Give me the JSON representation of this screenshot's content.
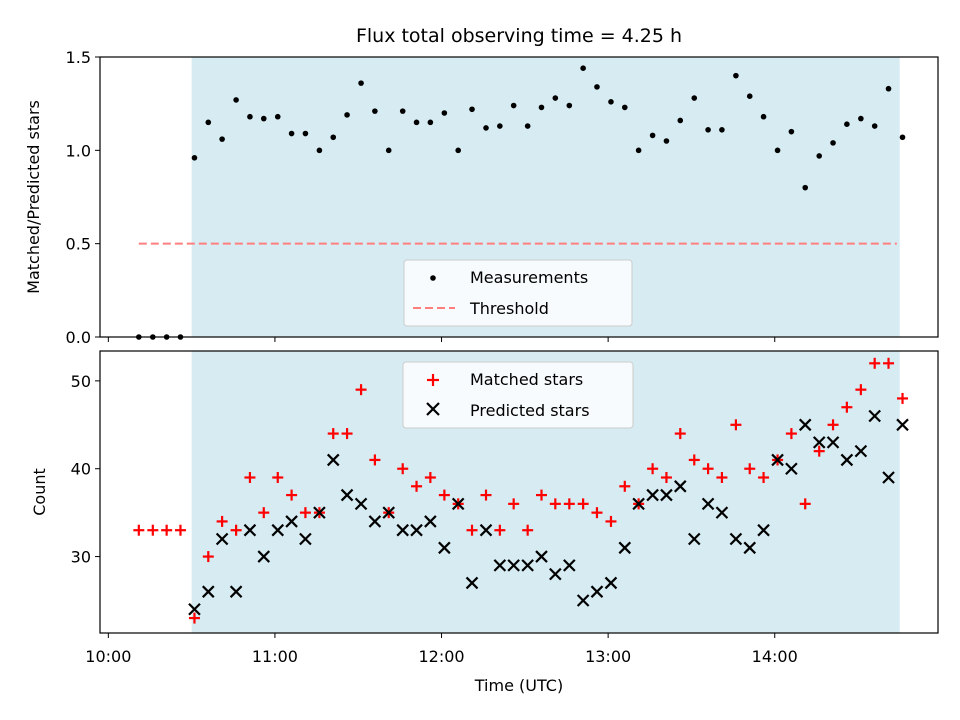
{
  "chart_data": [
    {
      "type": "scatter",
      "title": "Flux total observing time = 4.25 h",
      "xlabel": "",
      "ylabel": "Matched/Predicted stars",
      "ylim": [
        0,
        1.5
      ],
      "yticks": [
        "0.0",
        "0.5",
        "1.0",
        "1.5"
      ],
      "highlight_span_hours": [
        10.5,
        14.75
      ],
      "highlight_color": "#add8e6",
      "legend_position": "lower center",
      "series": [
        {
          "name": "Measurements",
          "marker": "dot",
          "color": "#000000",
          "x": [
            10.183,
            10.267,
            10.35,
            10.433,
            10.517,
            10.6,
            10.683,
            10.767,
            10.85,
            10.933,
            11.017,
            11.1,
            11.183,
            11.267,
            11.35,
            11.433,
            11.517,
            11.6,
            11.683,
            11.767,
            11.85,
            11.933,
            12.017,
            12.1,
            12.183,
            12.267,
            12.35,
            12.433,
            12.517,
            12.6,
            12.683,
            12.767,
            12.85,
            12.933,
            13.017,
            13.1,
            13.183,
            13.267,
            13.35,
            13.433,
            13.517,
            13.6,
            13.683,
            13.767,
            13.85,
            13.933,
            14.017,
            14.1,
            14.183,
            14.267,
            14.35,
            14.433,
            14.517,
            14.6,
            14.683,
            14.767
          ],
          "y": [
            0.0,
            0.0,
            0.0,
            0.0,
            0.96,
            1.15,
            1.06,
            1.27,
            1.18,
            1.17,
            1.18,
            1.09,
            1.09,
            1.0,
            1.07,
            1.19,
            1.36,
            1.21,
            1.0,
            1.21,
            1.15,
            1.15,
            1.2,
            1.0,
            1.22,
            1.12,
            1.13,
            1.24,
            1.13,
            1.23,
            1.28,
            1.24,
            1.44,
            1.34,
            1.26,
            1.23,
            1.0,
            1.08,
            1.05,
            1.16,
            1.28,
            1.11,
            1.11,
            1.4,
            1.29,
            1.18,
            1.0,
            1.1,
            0.8,
            0.97,
            1.04,
            1.14,
            1.17,
            1.13,
            1.33,
            1.07
          ]
        },
        {
          "name": "Threshold",
          "marker": "dashed-line",
          "color": "#ff7f7f",
          "x": [
            10.183,
            14.733
          ],
          "y": [
            0.5,
            0.5
          ]
        }
      ]
    },
    {
      "type": "scatter",
      "title": "",
      "xlabel": "Time (UTC)",
      "ylabel": "Count",
      "ylim": [
        21.3,
        53.4
      ],
      "yticks": [
        "30",
        "40",
        "50"
      ],
      "xticks": [
        "10:00",
        "11:00",
        "12:00",
        "13:00",
        "14:00"
      ],
      "xlim_hours": [
        9.95,
        14.98
      ],
      "highlight_span_hours": [
        10.5,
        14.75
      ],
      "legend_position": "upper center",
      "series": [
        {
          "name": "Matched stars",
          "marker": "plus",
          "color": "#ff0000",
          "x": [
            10.183,
            10.267,
            10.35,
            10.433,
            10.517,
            10.6,
            10.683,
            10.767,
            10.85,
            10.933,
            11.017,
            11.1,
            11.183,
            11.267,
            11.35,
            11.433,
            11.517,
            11.6,
            11.683,
            11.767,
            11.85,
            11.933,
            12.017,
            12.1,
            12.183,
            12.267,
            12.35,
            12.433,
            12.517,
            12.6,
            12.683,
            12.767,
            12.85,
            12.933,
            13.017,
            13.1,
            13.183,
            13.267,
            13.35,
            13.433,
            13.517,
            13.6,
            13.683,
            13.767,
            13.85,
            13.933,
            14.017,
            14.1,
            14.183,
            14.267,
            14.35,
            14.433,
            14.517,
            14.6,
            14.683,
            14.767
          ],
          "y": [
            33,
            33,
            33,
            33,
            23,
            30,
            34,
            33,
            39,
            35,
            39,
            37,
            35,
            35,
            44,
            44,
            49,
            41,
            35,
            40,
            38,
            39,
            37,
            36,
            33,
            37,
            33,
            36,
            33,
            37,
            36,
            36,
            36,
            35,
            34,
            38,
            36,
            40,
            39,
            44,
            41,
            40,
            39,
            45,
            40,
            39,
            41,
            44,
            36,
            42,
            45,
            47,
            49,
            52,
            52,
            48
          ]
        },
        {
          "name": "Predicted stars",
          "marker": "x",
          "color": "#000000",
          "x": [
            10.517,
            10.6,
            10.683,
            10.767,
            10.85,
            10.933,
            11.017,
            11.1,
            11.183,
            11.267,
            11.35,
            11.433,
            11.517,
            11.6,
            11.683,
            11.767,
            11.85,
            11.933,
            12.017,
            12.1,
            12.183,
            12.267,
            12.35,
            12.433,
            12.517,
            12.6,
            12.683,
            12.767,
            12.85,
            12.933,
            13.017,
            13.1,
            13.183,
            13.267,
            13.35,
            13.433,
            13.517,
            13.6,
            13.683,
            13.767,
            13.85,
            13.933,
            14.017,
            14.1,
            14.183,
            14.267,
            14.35,
            14.433,
            14.517,
            14.6,
            14.683,
            14.767
          ],
          "y": [
            24,
            26,
            32,
            26,
            33,
            30,
            33,
            34,
            32,
            35,
            41,
            37,
            36,
            34,
            35,
            33,
            33,
            34,
            31,
            36,
            27,
            33,
            29,
            29,
            29,
            30,
            28,
            29,
            25,
            26,
            27,
            31,
            36,
            37,
            37,
            38,
            32,
            36,
            35,
            32,
            31,
            33,
            41,
            40,
            45,
            43,
            43,
            41,
            42,
            46,
            39,
            45
          ]
        }
      ]
    }
  ]
}
